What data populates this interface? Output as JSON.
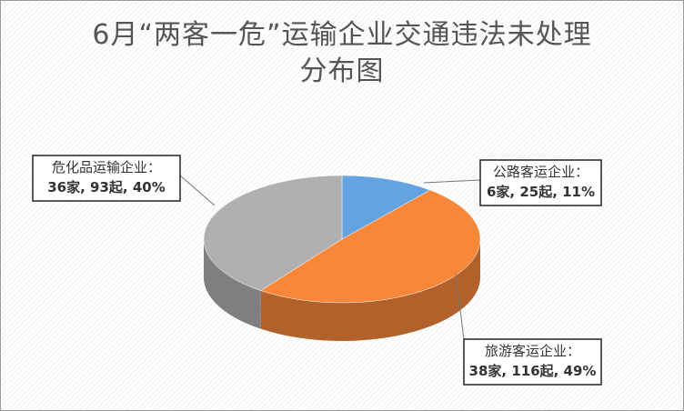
{
  "chart_data": {
    "type": "pie3d",
    "title": "6月“两客一危”运输企业交通违法未处理分布图",
    "categories": [
      "公路客运企业：",
      "旅游客运企业：",
      "危化品运输企业："
    ],
    "values": [
      11,
      49,
      40
    ],
    "value_labels": [
      "6家, 25起, 11%",
      "38家, 116起, 49%",
      "36家, 93起, 40%"
    ],
    "colors": [
      "#62a3e0",
      "#f9873a",
      "#b0b0b0"
    ]
  }
}
